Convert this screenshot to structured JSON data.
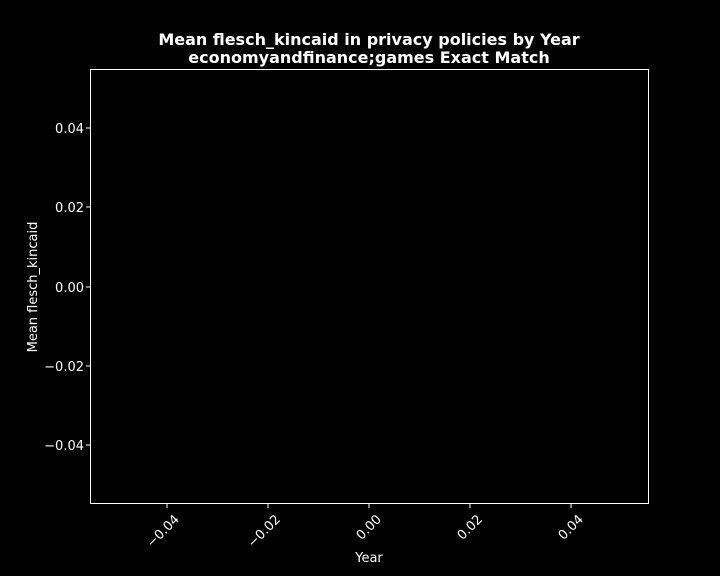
{
  "chart_data": {
    "type": "line",
    "title": "Mean flesch_kincaid in privacy policies by Year",
    "subtitle": "economyandfinance;games Exact Match",
    "xlabel": "Year",
    "ylabel": "Mean flesch_kincaid",
    "xlim": [
      -0.055,
      0.055
    ],
    "ylim": [
      -0.055,
      0.055
    ],
    "xticks": [
      "−0.04",
      "−0.02",
      "0.00",
      "0.02",
      "0.04"
    ],
    "yticks": [
      "0.04",
      "0.02",
      "0.00",
      "−0.02",
      "−0.04"
    ],
    "series": [],
    "grid": false,
    "background": "#000000",
    "foreground": "#ffffff"
  }
}
